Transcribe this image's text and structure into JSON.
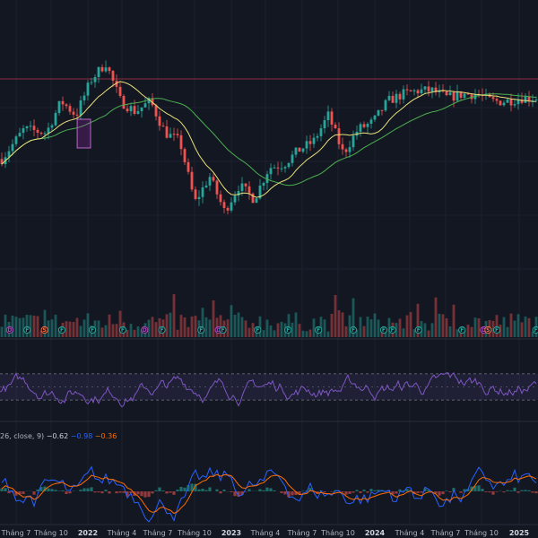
{
  "colors": {
    "background": "#131722",
    "bull": "#26a69a",
    "bear": "#ef5350",
    "ma_fast": "#e8e07a",
    "ma_slow": "#4caf50",
    "rsi": "#7e57c2",
    "rsi_band": "#7e57c2",
    "macd": "#2962ff",
    "signal": "#ff6d00",
    "hline": "#b2344b"
  },
  "chart_data": [
    {
      "type": "candlestick",
      "pane": "price",
      "x_ticks": [
        "Tháng 7",
        "Tháng 10",
        "2022",
        "Tháng 4",
        "Tháng 7",
        "Tháng 10",
        "2023",
        "Tháng 4",
        "Tháng 7",
        "Tháng 10",
        "2024",
        "Tháng 4",
        "Tháng 7",
        "Tháng 10",
        "2025"
      ],
      "anchors": [
        [
          0,
          0.45
        ],
        [
          3,
          0.62
        ],
        [
          6,
          0.6
        ],
        [
          8,
          0.78
        ],
        [
          10,
          0.7
        ],
        [
          12,
          0.9
        ],
        [
          14,
          1.0
        ],
        [
          16,
          0.78
        ],
        [
          18,
          0.72
        ],
        [
          20,
          0.78
        ],
        [
          22,
          0.6
        ],
        [
          24,
          0.55
        ],
        [
          26,
          0.2
        ],
        [
          28,
          0.35
        ],
        [
          30,
          0.15
        ],
        [
          32,
          0.3
        ],
        [
          34,
          0.22
        ],
        [
          36,
          0.4
        ],
        [
          38,
          0.42
        ],
        [
          40,
          0.5
        ],
        [
          42,
          0.55
        ],
        [
          44,
          0.7
        ],
        [
          46,
          0.48
        ],
        [
          48,
          0.62
        ],
        [
          50,
          0.66
        ],
        [
          52,
          0.78
        ],
        [
          54,
          0.82
        ],
        [
          56,
          0.84
        ],
        [
          58,
          0.84
        ],
        [
          60,
          0.8
        ],
        [
          62,
          0.82
        ],
        [
          64,
          0.82
        ],
        [
          66,
          0.78
        ],
        [
          68,
          0.78
        ],
        [
          70,
          0.8
        ],
        [
          72,
          0.8
        ]
      ],
      "y_range": [
        0,
        1
      ],
      "horizontal_line": 1.0,
      "highlight_box": {
        "x_from": 10.4,
        "x_to": 12.2
      },
      "moving_averages": [
        "fast",
        "slow"
      ]
    },
    {
      "type": "bar",
      "pane": "volume",
      "note_levels": "relative"
    },
    {
      "type": "line",
      "pane": "rsi",
      "band": [
        30,
        70
      ],
      "midline": 50,
      "y_range": [
        0,
        100
      ]
    },
    {
      "type": "line",
      "pane": "macd",
      "legend_prefix": "26, close, 9)",
      "values": {
        "hist": "−0.62",
        "macd": "−0.98",
        "signal": "−0.36"
      }
    }
  ],
  "events": [
    {
      "kind": "D",
      "pos": 1
    },
    {
      "kind": "F",
      "pos": 5
    },
    {
      "kind": "S",
      "pos": 9
    },
    {
      "kind": "F",
      "pos": 13
    },
    {
      "kind": "F",
      "pos": 20
    },
    {
      "kind": "F",
      "pos": 27
    },
    {
      "kind": "D",
      "pos": 32
    },
    {
      "kind": "F",
      "pos": 36
    },
    {
      "kind": "F",
      "pos": 45
    },
    {
      "kind": "D",
      "pos": 49
    },
    {
      "kind": "F",
      "pos": 50
    },
    {
      "kind": "F",
      "pos": 58
    },
    {
      "kind": "F",
      "pos": 65
    },
    {
      "kind": "F",
      "pos": 72
    },
    {
      "kind": "F",
      "pos": 80
    },
    {
      "kind": "F",
      "pos": 87
    },
    {
      "kind": "F",
      "pos": 89
    },
    {
      "kind": "F",
      "pos": 95
    },
    {
      "kind": "F",
      "pos": 105
    },
    {
      "kind": "D",
      "pos": 110
    },
    {
      "kind": "S",
      "pos": 111
    },
    {
      "kind": "F",
      "pos": 113
    },
    {
      "kind": "F",
      "pos": 122
    }
  ]
}
